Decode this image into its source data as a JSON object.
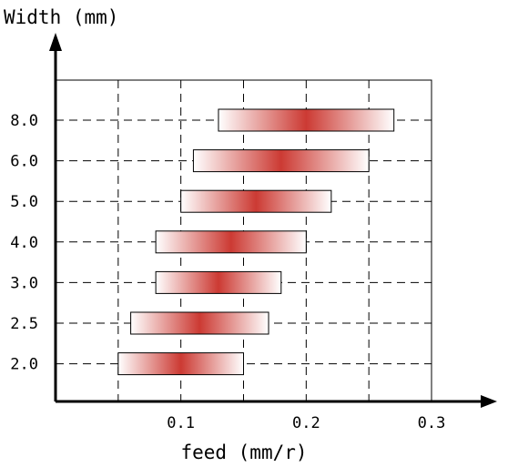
{
  "chart_data": {
    "type": "bar",
    "subtype": "floating-range",
    "ylabel": "Width (mm)",
    "xlabel": "feed (mm/r)",
    "xlim": [
      0,
      0.3
    ],
    "x_gridlines": [
      0.05,
      0.1,
      0.15,
      0.2,
      0.25
    ],
    "x_ticks": [
      {
        "value": 0.1,
        "label": "0.1"
      },
      {
        "value": 0.2,
        "label": "0.2"
      },
      {
        "value": 0.3,
        "label": "0.3"
      }
    ],
    "categories": [
      "8.0",
      "6.0",
      "5.0",
      "4.0",
      "3.0",
      "2.5",
      "2.0"
    ],
    "ranges": [
      [
        0.13,
        0.27
      ],
      [
        0.11,
        0.25
      ],
      [
        0.1,
        0.22
      ],
      [
        0.08,
        0.2
      ],
      [
        0.08,
        0.18
      ],
      [
        0.06,
        0.17
      ],
      [
        0.05,
        0.15
      ]
    ],
    "grid": "dashed",
    "bar_color": "#cc3a33",
    "bar_edge_color": "#ffffff"
  }
}
